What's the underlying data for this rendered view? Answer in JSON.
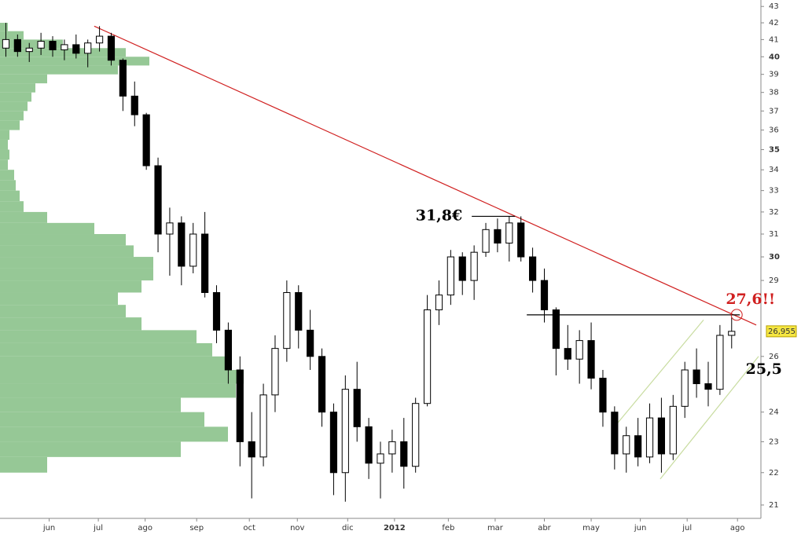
{
  "chart_data": {
    "type": "candlestick",
    "log_scale": true,
    "up_color": "#ffffff",
    "down_color": "#000000",
    "x": [
      0.5,
      1.5,
      2.5,
      3.5,
      4.5,
      5.5,
      6.5,
      7.5,
      8.5,
      9.5,
      10.5,
      11.5,
      12.5,
      13.5,
      14.5,
      15.5,
      16.5,
      17.5,
      18.5,
      19.5,
      20.5,
      21.5,
      22.5,
      23.5,
      24.5,
      25.5,
      26.5,
      27.5,
      28.5,
      29.5,
      30.5,
      31.5,
      32.5,
      33.5,
      34.5,
      35.5,
      36.5,
      37.5,
      38.5,
      39.5,
      40.5,
      41.5,
      42.5,
      43.5,
      44.5,
      45.5,
      46.5,
      47.5,
      48.5,
      49.5,
      50.5,
      51.5,
      52.5,
      53.5,
      54.5,
      55.5,
      56.5,
      57.5,
      58.5,
      59.5,
      60.5,
      61.5,
      62.5
    ],
    "open": [
      40.5,
      41,
      40.3,
      40.5,
      40.9,
      40.4,
      40.7,
      40.2,
      40.8,
      41.2,
      39.8,
      37.8,
      36.8,
      34.2,
      31,
      31.5,
      29.6,
      31,
      28.5,
      27,
      25.5,
      23,
      22.5,
      24.6,
      26.3,
      28.5,
      27,
      26,
      24,
      22,
      24.8,
      23.5,
      22.3,
      22.6,
      23,
      22.2,
      24.3,
      27.8,
      28.4,
      30,
      29,
      30.2,
      31.2,
      30.6,
      31.5,
      30,
      29,
      27.8,
      26.3,
      25.9,
      26.6,
      25.2,
      24,
      22.6,
      23.2,
      22.5,
      23.8,
      22.6,
      24.2,
      25.5,
      25,
      24.8,
      26.8
    ],
    "high": [
      42,
      41.3,
      40.8,
      41.4,
      41.2,
      41,
      41.3,
      41,
      41.8,
      41.4,
      39.9,
      38.6,
      36.9,
      34.6,
      32.2,
      31.8,
      31.5,
      32,
      28.8,
      27.3,
      26,
      24,
      25,
      26.8,
      29,
      28.8,
      27.8,
      26.3,
      24.3,
      25.3,
      25.8,
      23.8,
      23,
      23.4,
      23.8,
      24.5,
      28.4,
      29,
      30.3,
      30.2,
      30.5,
      31.5,
      31.7,
      31.8,
      31.8,
      30.4,
      29.5,
      27.9,
      27.2,
      27,
      27.3,
      25.5,
      24.2,
      23.5,
      23.8,
      24.3,
      24.5,
      24.6,
      25.8,
      26.3,
      25.8,
      27.2,
      27.5
    ],
    "low": [
      40,
      40,
      39.7,
      40.1,
      40,
      39.8,
      39.9,
      39.4,
      40.3,
      39.5,
      37,
      36.2,
      34,
      30.2,
      29.2,
      28.8,
      29.3,
      28.3,
      26.5,
      25,
      22.2,
      21.2,
      22.2,
      24,
      25.8,
      26.3,
      25.5,
      23.5,
      21.3,
      21.1,
      23,
      21.8,
      21.2,
      22,
      21.5,
      22,
      24.2,
      27.2,
      28,
      28.4,
      28.2,
      30,
      30.2,
      29.8,
      29.8,
      28.5,
      27.3,
      25.3,
      25.5,
      25,
      24.8,
      23.5,
      22.1,
      22,
      22.2,
      22.3,
      22,
      22.4,
      23.8,
      24.5,
      24.2,
      24.6,
      26.3
    ],
    "close": [
      41,
      40.3,
      40.5,
      40.9,
      40.4,
      40.7,
      40.2,
      40.8,
      41.2,
      39.8,
      37.8,
      36.8,
      34.2,
      31,
      31.5,
      29.6,
      31,
      28.5,
      27,
      25.5,
      23,
      22.5,
      24.6,
      26.3,
      28.5,
      27,
      26,
      24,
      22,
      24.8,
      23.5,
      22.3,
      22.6,
      23,
      22.2,
      24.3,
      27.8,
      28.4,
      30,
      29,
      30.2,
      31.2,
      30.6,
      31.5,
      30,
      29,
      27.8,
      26.3,
      25.9,
      26.6,
      25.2,
      24,
      22.6,
      23.2,
      22.5,
      23.8,
      22.6,
      24.2,
      25.5,
      25,
      24.8,
      26.8,
      26.955
    ],
    "xlim": [
      0,
      65
    ],
    "xticks": [
      {
        "value": 4.2,
        "label": "jun"
      },
      {
        "value": 8.4,
        "label": "jul"
      },
      {
        "value": 12.4,
        "label": "ago"
      },
      {
        "value": 16.8,
        "label": "sep"
      },
      {
        "value": 21.3,
        "label": "oct"
      },
      {
        "value": 25.4,
        "label": "nov"
      },
      {
        "value": 29.7,
        "label": "dic"
      },
      {
        "value": 33.7,
        "label": "2012"
      },
      {
        "value": 38.3,
        "label": "feb"
      },
      {
        "value": 42.3,
        "label": "mar"
      },
      {
        "value": 46.5,
        "label": "abr"
      },
      {
        "value": 50.5,
        "label": "may"
      },
      {
        "value": 54.7,
        "label": "jun"
      },
      {
        "value": 58.7,
        "label": "jul"
      },
      {
        "value": 63.0,
        "label": "ago"
      }
    ],
    "ylim": [
      20.6,
      43.4
    ],
    "yticks": [
      21,
      22,
      23,
      24,
      26,
      29,
      30,
      31,
      32,
      33,
      34,
      35,
      36,
      37,
      38,
      39,
      40,
      41,
      42,
      43
    ],
    "last_price": {
      "value": 26.955,
      "label": "26,955",
      "color": "#f5e642"
    },
    "volume_profile": {
      "color": "#96c896",
      "step": 0.5,
      "prices": [
        22,
        22.5,
        23,
        23.5,
        24,
        24.5,
        25,
        25.5,
        26,
        26.5,
        27,
        27.5,
        28,
        28.5,
        29,
        29.5,
        30,
        30.5,
        31,
        31.5,
        32,
        32.5,
        33,
        33.5,
        34,
        34.5,
        35,
        35.5,
        36,
        36.5,
        37,
        37.5,
        38,
        38.5,
        39,
        39.5,
        40,
        40.5,
        41,
        41.5
      ],
      "values": [
        60,
        230,
        290,
        260,
        230,
        300,
        310,
        290,
        270,
        250,
        180,
        160,
        150,
        180,
        195,
        195,
        170,
        160,
        120,
        60,
        30,
        25,
        20,
        18,
        10,
        12,
        10,
        12,
        25,
        30,
        35,
        40,
        45,
        60,
        150,
        190,
        160,
        80,
        30,
        10
      ]
    },
    "trendlines": [
      {
        "color": "#d02020",
        "x": [
          8.05,
          64.6
        ],
        "y": [
          41.8,
          27.2
        ]
      },
      {
        "color": "#000000",
        "x": [
          45,
          63.2
        ],
        "y": [
          27.6,
          27.6
        ]
      },
      {
        "color": "#000000",
        "x": [
          40.3,
          44
        ],
        "y": [
          31.8,
          31.8
        ]
      },
      {
        "color": "#c8dca0",
        "x": [
          56.4,
          64.8
        ],
        "y": [
          21.8,
          26.0
        ]
      },
      {
        "color": "#c8dca0",
        "x": [
          52.7,
          60.1
        ],
        "y": [
          23.6,
          27.4
        ]
      }
    ],
    "annotations": [
      {
        "text": "31,8€",
        "value": 31.8,
        "x": 39.5,
        "color": "#000000"
      },
      {
        "text": "27,6!!",
        "value": 27.6,
        "x": 62,
        "color": "#d02020"
      },
      {
        "text": "25,5",
        "value": 25.5,
        "x": 63.7,
        "color": "#000000"
      }
    ]
  }
}
